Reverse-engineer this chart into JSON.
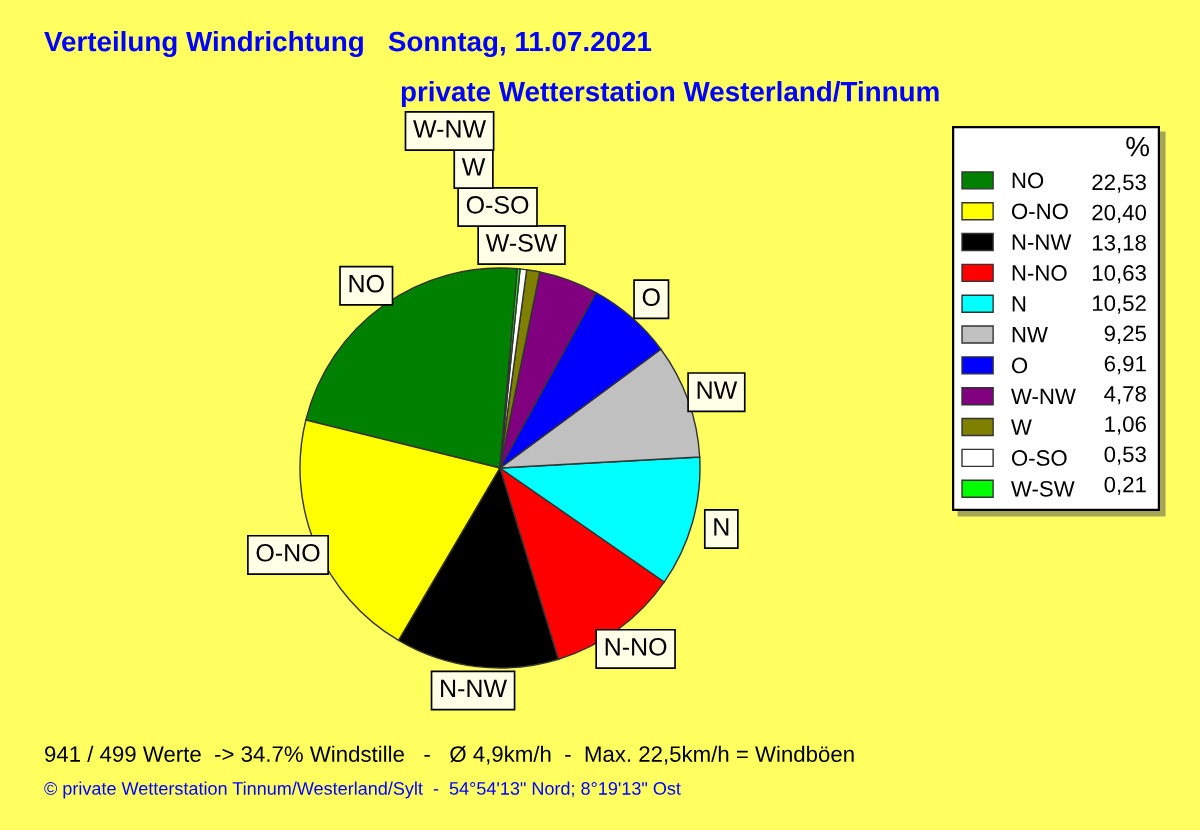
{
  "chart_data": {
    "type": "pie",
    "title": "Verteilung Windrichtung   Sonntag, 11.07.2021",
    "subtitle": "private Wetterstation Westerland/Tinnum",
    "categories": [
      "NO",
      "O-NO",
      "N-NW",
      "N-NO",
      "N",
      "NW",
      "O",
      "W-NW",
      "W",
      "O-SO",
      "W-SW"
    ],
    "values": [
      22.53,
      20.4,
      13.18,
      10.63,
      10.52,
      9.25,
      6.91,
      4.78,
      1.06,
      0.53,
      0.21
    ],
    "value_labels": [
      "22,53",
      "20,40",
      "13,18",
      "10,63",
      "10,52",
      "9,25",
      "6,91",
      "4,78",
      "1,06",
      "0,53",
      "0,21"
    ],
    "colors": [
      "#008000",
      "#ffff00",
      "#000000",
      "#ff0000",
      "#00ffff",
      "#c0c0c0",
      "#0000ff",
      "#800080",
      "#808000",
      "#ffffff",
      "#00ff00"
    ],
    "legend": "right",
    "legend_title": "%",
    "annotations": [
      "941 / 499 Werte  -> 34.7% Windstille   -   Ø 4,9km/h  -  Max. 22,5km/h = Windböen",
      "© private Wetterstation Tinnum/Westerland/Sylt  -  54°54'13\" Nord; 8°19'13\" Ost"
    ]
  }
}
